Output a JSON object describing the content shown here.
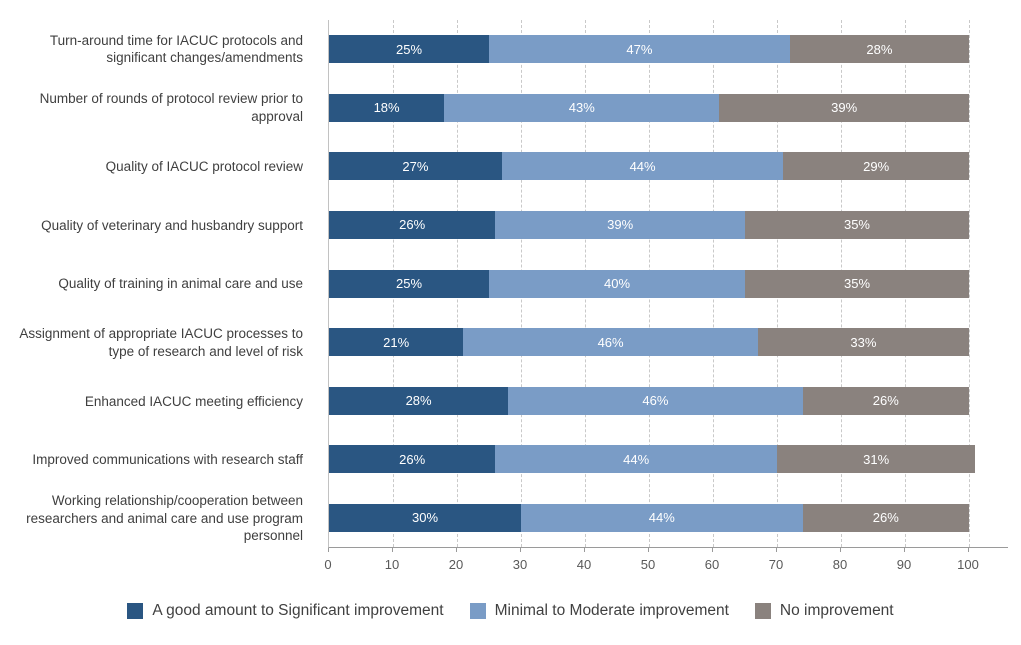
{
  "chart_data": {
    "type": "bar",
    "orientation": "horizontal-stacked",
    "title": "",
    "xlabel": "",
    "ylabel": "",
    "xlim": [
      0,
      100
    ],
    "x_ticks": [
      0,
      10,
      20,
      30,
      40,
      50,
      60,
      70,
      80,
      90,
      100
    ],
    "grid": "dashed-vertical",
    "legend_position": "bottom",
    "value_label_suffix": "%",
    "categories": [
      "Turn-around time for IACUC protocols and significant changes/amendments",
      "Number of rounds of protocol review prior to approval",
      "Quality of IACUC protocol review",
      "Quality of veterinary and husbandry support",
      "Quality of training in animal care and use",
      "Assignment of appropriate IACUC processes to type of research and level of risk",
      "Enhanced IACUC meeting efficiency",
      "Improved communications with research staff",
      "Working relationship/cooperation between researchers and animal care and use program personnel"
    ],
    "series": [
      {
        "name": "A good amount to Significant improvement",
        "color": "#2a5682",
        "values": [
          25,
          18,
          27,
          26,
          25,
          21,
          28,
          26,
          30
        ]
      },
      {
        "name": "Minimal to Moderate improvement",
        "color": "#7a9cc6",
        "values": [
          47,
          43,
          44,
          39,
          40,
          46,
          46,
          44,
          44
        ]
      },
      {
        "name": "No improvement",
        "color": "#8a827e",
        "values": [
          28,
          39,
          29,
          35,
          35,
          33,
          26,
          31,
          26
        ]
      }
    ]
  },
  "colors": {
    "background": "#ffffff",
    "gridline": "#c9c9c9",
    "axis_line": "#9a9a9a",
    "category_text": "#3f3f3f",
    "tick_text": "#595959",
    "value_text": "#ffffff"
  }
}
